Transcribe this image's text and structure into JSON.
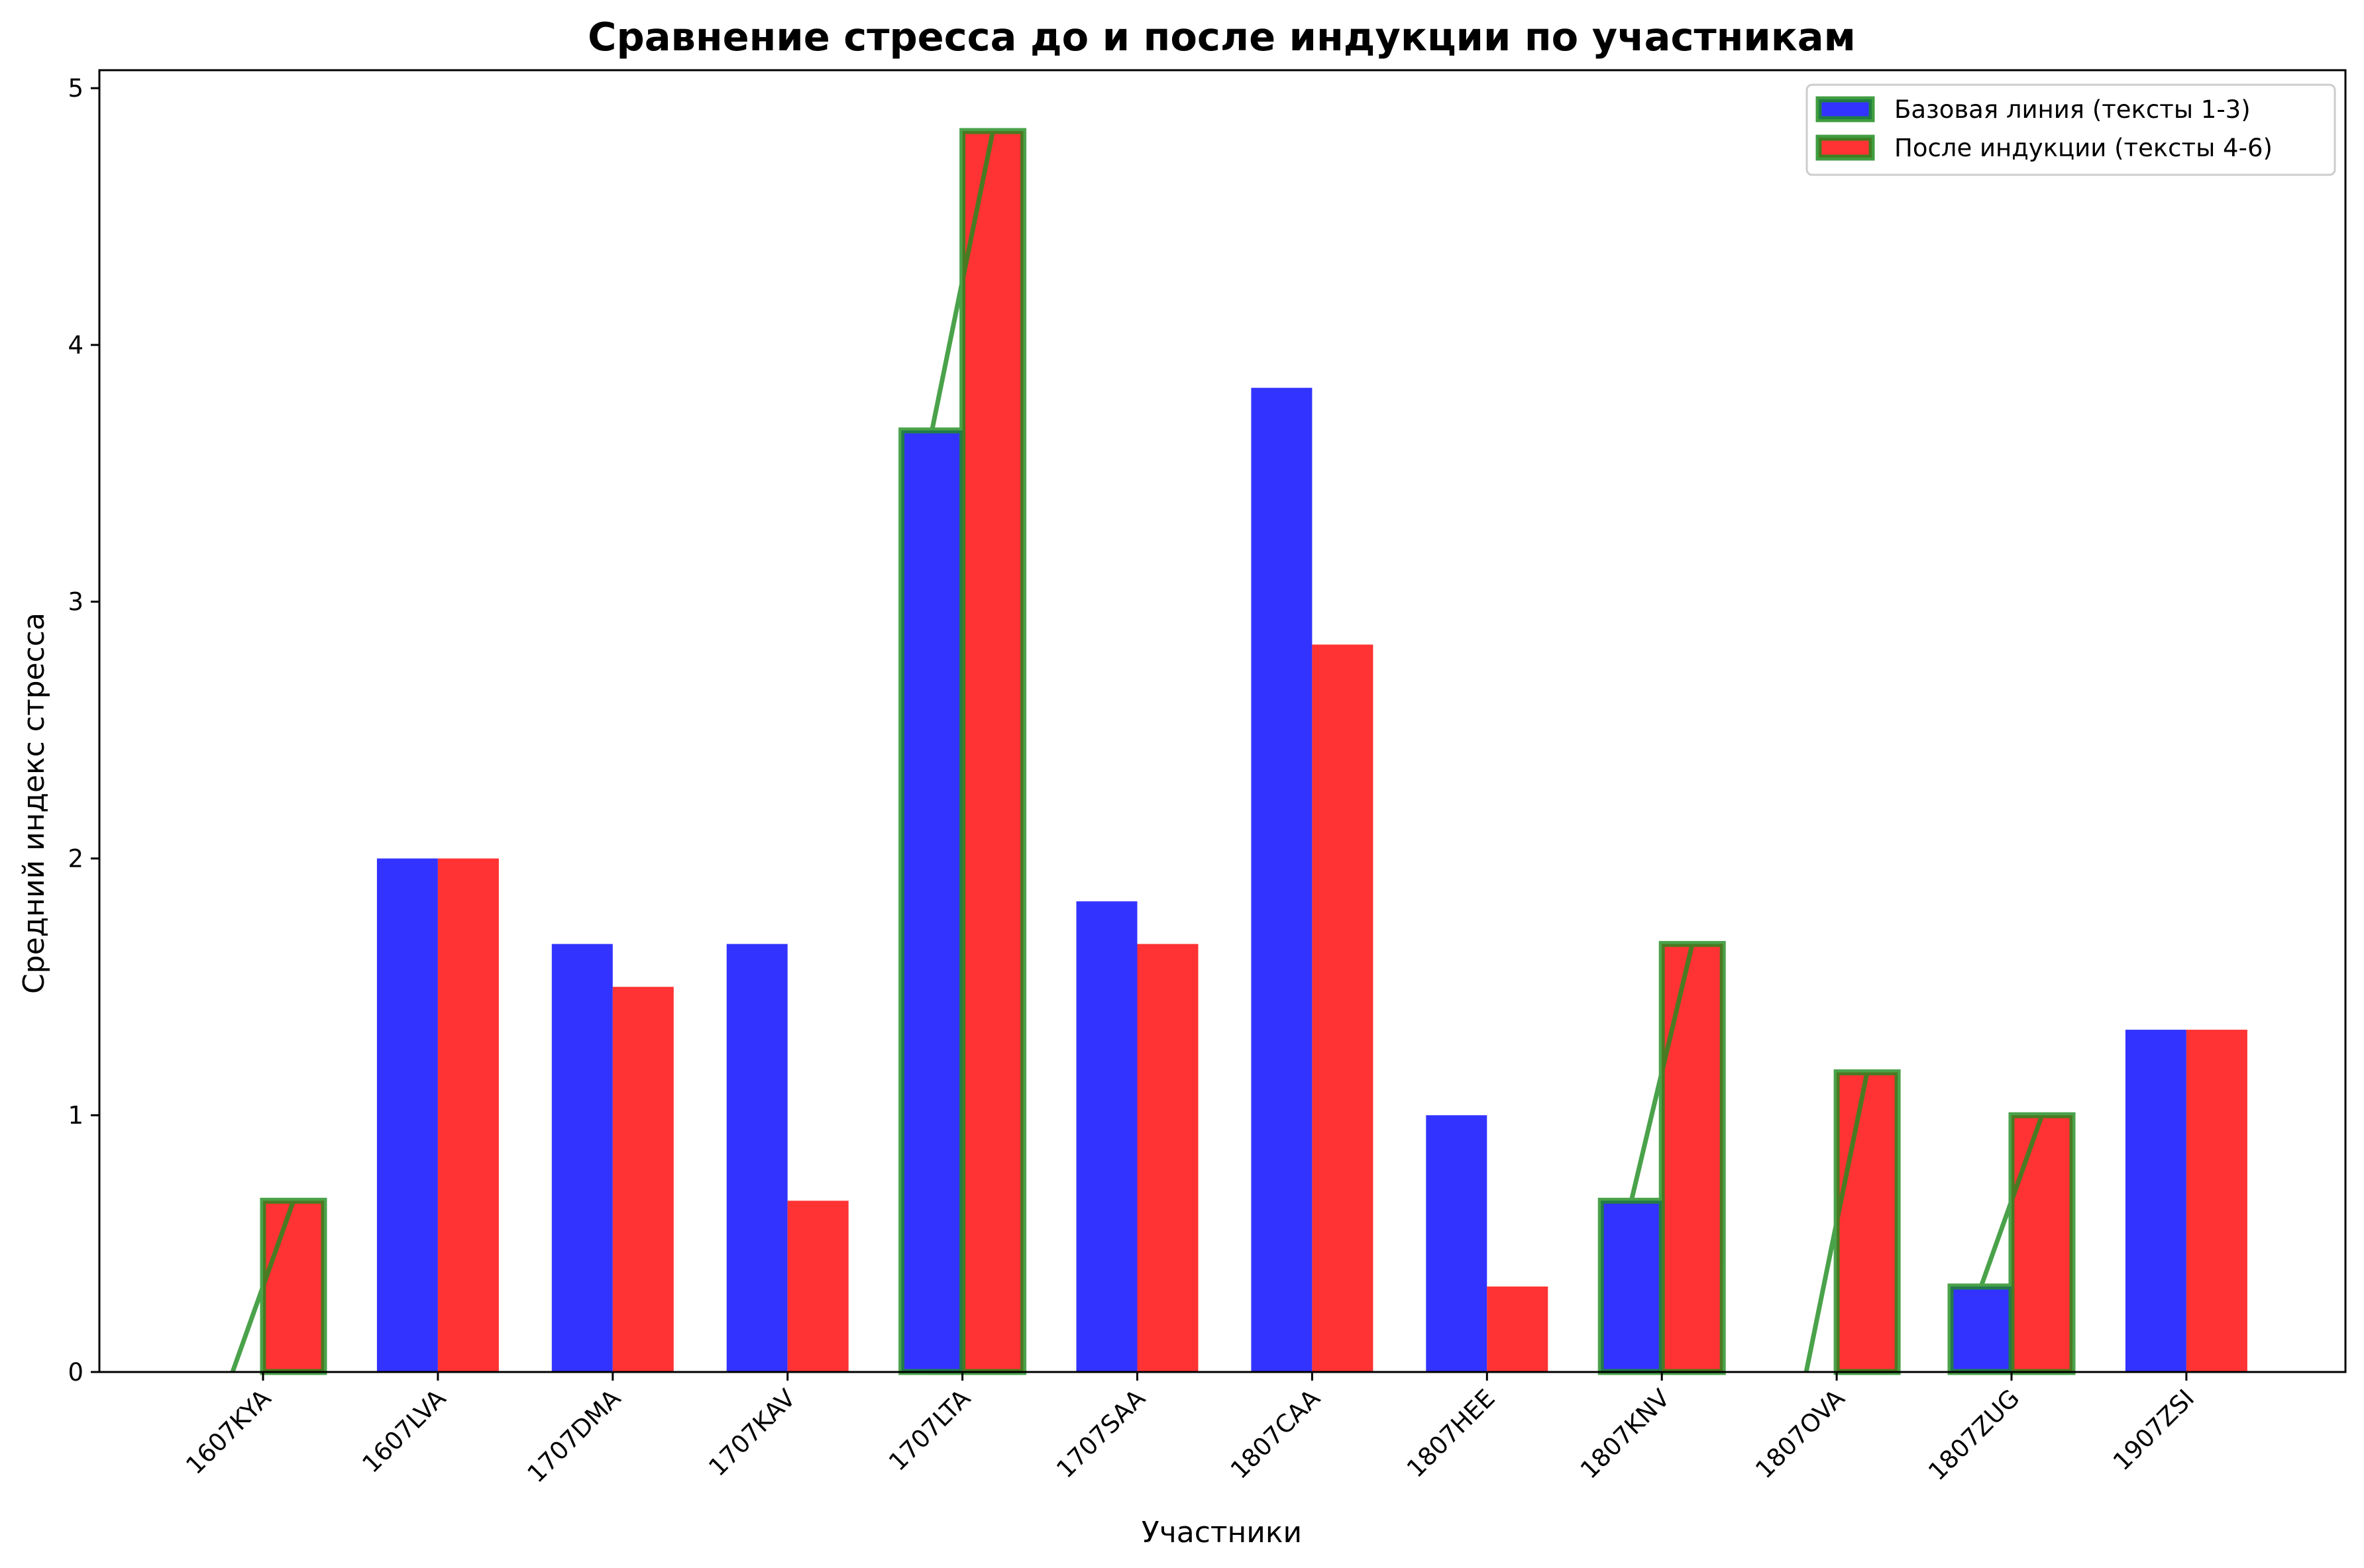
{
  "chart_data": {
    "type": "bar",
    "title": "Сравнение стресса до и после индукции по участникам",
    "xlabel": "Участники",
    "ylabel": "Средний индекс стресса",
    "ylim": [
      0,
      5.07
    ],
    "yticks": [
      0,
      1,
      2,
      3,
      4,
      5
    ],
    "categories": [
      "1607KYA",
      "1607LVA",
      "1707DMA",
      "1707KAV",
      "1707LTA",
      "1707SAA",
      "1807CAA",
      "1807HEE",
      "1807KNV",
      "1807OVA",
      "1807ZUG",
      "1907ZSI"
    ],
    "series": [
      {
        "name": "Базовая линия (тексты 1-3)",
        "color": "#3333ff",
        "values": [
          0,
          2.0,
          1.667,
          1.667,
          3.667,
          1.833,
          3.833,
          1.0,
          0.667,
          0,
          0.333,
          1.333
        ]
      },
      {
        "name": "После индукции (тексты 4-6)",
        "color": "#ff3333",
        "values": [
          0.667,
          2.0,
          1.5,
          0.667,
          4.833,
          1.667,
          2.833,
          0.333,
          1.667,
          1.167,
          1.0,
          1.333
        ]
      }
    ],
    "highlighted_categories": [
      "1607KYA",
      "1707LTA",
      "1807KNV",
      "1807OVA",
      "1807ZUG"
    ],
    "highlight_color": "#1e8c1e",
    "legend_position": "top-right",
    "grid": false
  }
}
